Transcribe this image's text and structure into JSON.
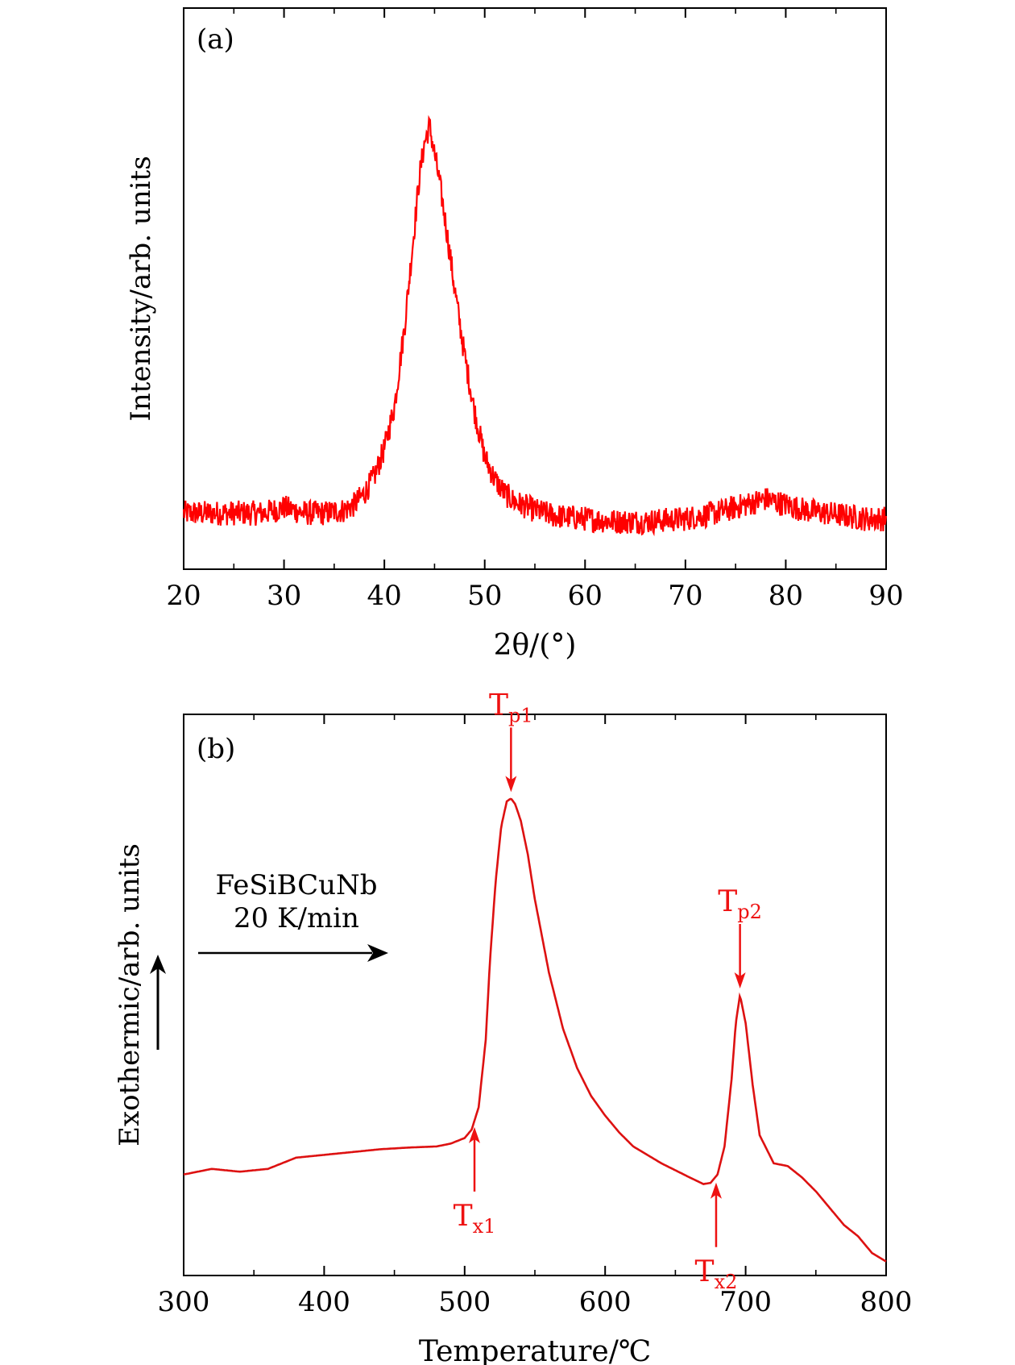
{
  "chart_data": [
    {
      "panel": "(a)",
      "type": "line",
      "xlabel": "2θ/(°)",
      "ylabel": "Intensity/arb. units",
      "xlim": [
        20,
        90
      ],
      "ylim": [
        0,
        1
      ],
      "xticks": [
        20,
        30,
        40,
        50,
        60,
        70,
        80,
        90
      ],
      "yticks_shown": false,
      "grid": false,
      "series": [
        {
          "color": "#ff0000",
          "x": [
            20,
            22,
            24,
            26,
            28,
            30,
            32,
            34,
            36,
            37,
            38,
            39,
            40,
            41,
            42,
            42.5,
            43,
            43.5,
            44,
            44.5,
            45,
            45.5,
            46,
            47,
            48,
            49,
            50,
            51,
            52,
            53,
            55,
            57,
            60,
            63,
            66,
            70,
            73,
            75,
            77,
            78,
            79,
            80,
            82,
            84,
            86,
            88,
            90
          ],
          "y": [
            0.1,
            0.1,
            0.1,
            0.1,
            0.1,
            0.11,
            0.1,
            0.1,
            0.105,
            0.115,
            0.135,
            0.165,
            0.215,
            0.29,
            0.43,
            0.52,
            0.61,
            0.7,
            0.76,
            0.79,
            0.74,
            0.69,
            0.63,
            0.5,
            0.38,
            0.28,
            0.2,
            0.16,
            0.135,
            0.12,
            0.105,
            0.095,
            0.09,
            0.085,
            0.085,
            0.09,
            0.1,
            0.11,
            0.12,
            0.125,
            0.12,
            0.115,
            0.105,
            0.1,
            0.095,
            0.09,
            0.09
          ]
        }
      ]
    },
    {
      "panel": "(b)",
      "type": "line",
      "xlabel": "Temperature/℃",
      "ylabel": "Exothermic/arb. units",
      "xlim": [
        300,
        800
      ],
      "ylim": [
        0,
        1
      ],
      "xticks": [
        300,
        400,
        500,
        600,
        700,
        800
      ],
      "yticks_shown": false,
      "grid": false,
      "annotation": {
        "sample": "FeSiBCuNb",
        "rate": "20 K/min"
      },
      "markers": [
        {
          "label": "T",
          "sub": "p1",
          "x": 533,
          "direction": "down"
        },
        {
          "label": "T",
          "sub": "p2",
          "x": 696,
          "direction": "down"
        },
        {
          "label": "T",
          "sub": "x1",
          "x": 507,
          "direction": "up"
        },
        {
          "label": "T",
          "sub": "x2",
          "x": 679,
          "direction": "up"
        }
      ],
      "series": [
        {
          "color": "#dd1111",
          "x": [
            300,
            320,
            340,
            360,
            380,
            400,
            420,
            440,
            460,
            480,
            490,
            500,
            505,
            510,
            515,
            518,
            522,
            526,
            530,
            533,
            536,
            540,
            545,
            550,
            560,
            570,
            580,
            590,
            600,
            610,
            620,
            640,
            660,
            670,
            675,
            680,
            685,
            690,
            693,
            696,
            700,
            705,
            710,
            720,
            730,
            740,
            750,
            760,
            770,
            780,
            790,
            800
          ],
          "y": [
            0.18,
            0.19,
            0.185,
            0.19,
            0.21,
            0.215,
            0.22,
            0.225,
            0.228,
            0.23,
            0.235,
            0.245,
            0.26,
            0.3,
            0.42,
            0.56,
            0.7,
            0.8,
            0.845,
            0.85,
            0.84,
            0.81,
            0.75,
            0.67,
            0.54,
            0.44,
            0.37,
            0.32,
            0.285,
            0.255,
            0.23,
            0.2,
            0.175,
            0.163,
            0.165,
            0.18,
            0.23,
            0.35,
            0.45,
            0.5,
            0.45,
            0.34,
            0.25,
            0.2,
            0.195,
            0.175,
            0.15,
            0.12,
            0.09,
            0.07,
            0.04,
            0.025
          ]
        }
      ]
    }
  ]
}
